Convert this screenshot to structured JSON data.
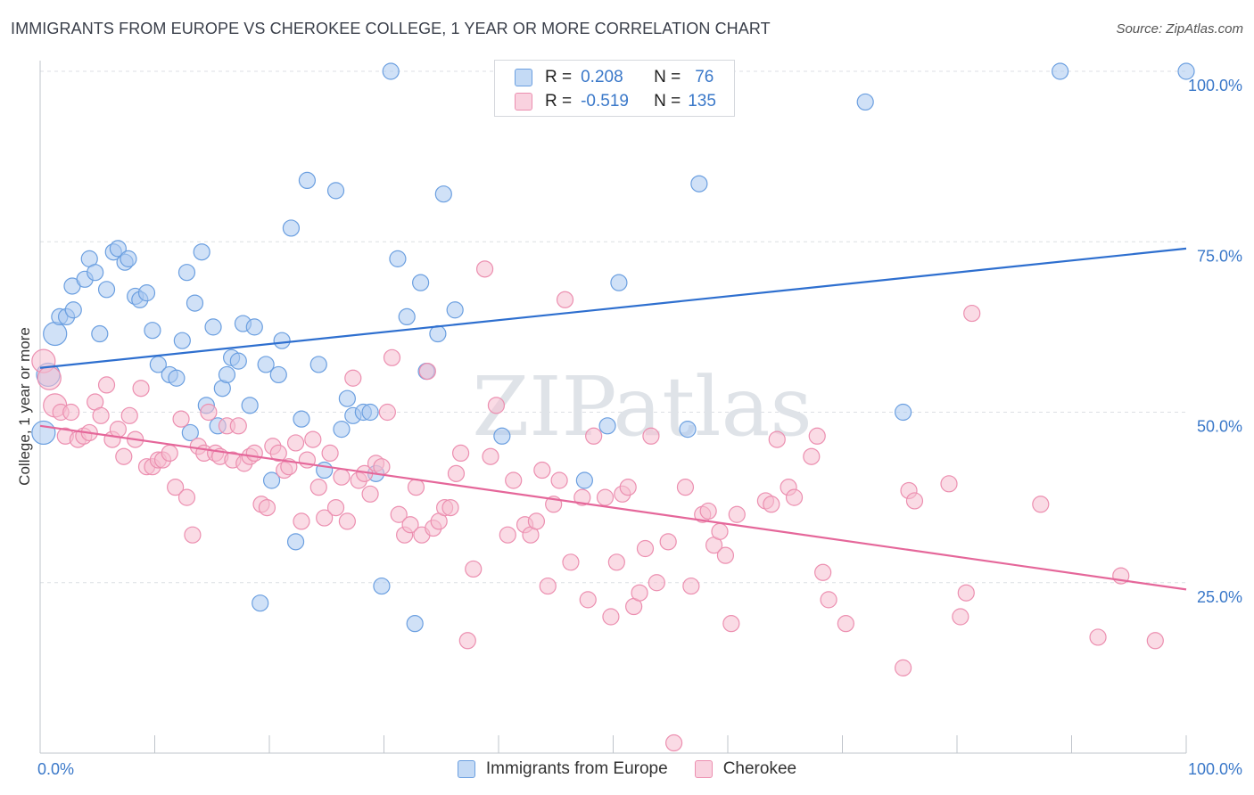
{
  "header": {
    "title": "IMMIGRANTS FROM EUROPE VS CHEROKEE COLLEGE, 1 YEAR OR MORE CORRELATION CHART",
    "source": "Source: ZipAtlas.com"
  },
  "watermark": "ZIPatlas",
  "legend": {
    "rows": [
      {
        "r_label": "R =",
        "r_value": "0.208",
        "n_label": "N =",
        "n_value": "76"
      },
      {
        "r_label": "R =",
        "r_value": "-0.519",
        "n_label": "N =",
        "n_value": "135"
      }
    ],
    "bottom": [
      "Immigrants from Europe",
      "Cherokee"
    ]
  },
  "colors": {
    "blue_fill": "#a9c8f0",
    "blue_stroke": "#6b9fe0",
    "blue_line": "#2e6fcf",
    "pink_fill": "#f6bed0",
    "pink_stroke": "#ec8fb0",
    "pink_line": "#e5679a",
    "axis_text": "#3a78c9"
  },
  "chart_data": {
    "type": "scatter",
    "title": "IMMIGRANTS FROM EUROPE VS CHEROKEE COLLEGE, 1 YEAR OR MORE CORRELATION CHART",
    "xlabel": "",
    "ylabel": "College, 1 year or more",
    "xlim": [
      0,
      100
    ],
    "ylim": [
      0,
      100
    ],
    "x_tick_labels": [
      "0.0%",
      "100.0%"
    ],
    "y_tick_labels": [
      "100.0%",
      "75.0%",
      "50.0%",
      "25.0%"
    ],
    "y_tick_values": [
      100,
      75,
      50,
      25
    ],
    "grid": "horizontal dashed",
    "legend_position": "top-center",
    "series": [
      {
        "name": "Immigrants from Europe",
        "color": "#a9c8f0",
        "R": 0.208,
        "N": 76,
        "trend": {
          "x": [
            0,
            100
          ],
          "y": [
            56.5,
            74.0
          ]
        },
        "points": [
          [
            0.3,
            47
          ],
          [
            0.7,
            55.5
          ],
          [
            1.3,
            61.5
          ],
          [
            1.7,
            64
          ],
          [
            2.3,
            64
          ],
          [
            2.9,
            65
          ],
          [
            2.8,
            68.5
          ],
          [
            3.9,
            69.5
          ],
          [
            4.3,
            72.5
          ],
          [
            4.8,
            70.5
          ],
          [
            5.2,
            61.5
          ],
          [
            5.8,
            68
          ],
          [
            6.4,
            73.5
          ],
          [
            6.8,
            74
          ],
          [
            7.4,
            72
          ],
          [
            7.7,
            72.5
          ],
          [
            8.3,
            67
          ],
          [
            8.7,
            66.5
          ],
          [
            9.3,
            67.5
          ],
          [
            9.8,
            62
          ],
          [
            10.3,
            57
          ],
          [
            11.3,
            55.5
          ],
          [
            11.9,
            55
          ],
          [
            12.4,
            60.5
          ],
          [
            12.8,
            70.5
          ],
          [
            13.1,
            47
          ],
          [
            13.5,
            66
          ],
          [
            14.1,
            73.5
          ],
          [
            14.5,
            51
          ],
          [
            15.1,
            62.5
          ],
          [
            15.5,
            48
          ],
          [
            15.9,
            53.5
          ],
          [
            16.3,
            55.5
          ],
          [
            16.7,
            58
          ],
          [
            17.3,
            57.5
          ],
          [
            17.7,
            63
          ],
          [
            18.3,
            51
          ],
          [
            18.7,
            62.5
          ],
          [
            19.2,
            22
          ],
          [
            19.7,
            57
          ],
          [
            20.2,
            40
          ],
          [
            20.8,
            55.5
          ],
          [
            21.1,
            60.5
          ],
          [
            21.9,
            77
          ],
          [
            22.3,
            31
          ],
          [
            22.8,
            49
          ],
          [
            23.3,
            84
          ],
          [
            24.3,
            57
          ],
          [
            24.8,
            41.5
          ],
          [
            25.8,
            82.5
          ],
          [
            26.3,
            47.5
          ],
          [
            26.8,
            52
          ],
          [
            27.3,
            49.5
          ],
          [
            28.2,
            50
          ],
          [
            28.8,
            50
          ],
          [
            29.3,
            41
          ],
          [
            29.8,
            24.5
          ],
          [
            30.6,
            100
          ],
          [
            31.2,
            72.5
          ],
          [
            32.0,
            64
          ],
          [
            32.7,
            19
          ],
          [
            33.2,
            69
          ],
          [
            33.7,
            56
          ],
          [
            34.7,
            61.5
          ],
          [
            35.2,
            82
          ],
          [
            36.2,
            65
          ],
          [
            40.3,
            46.5
          ],
          [
            47.5,
            40
          ],
          [
            49.5,
            48
          ],
          [
            50.5,
            69
          ],
          [
            56.5,
            47.5
          ],
          [
            57.5,
            83.5
          ],
          [
            72.0,
            95.5
          ],
          [
            75.3,
            50
          ],
          [
            89.0,
            100
          ],
          [
            100,
            100
          ]
        ]
      },
      {
        "name": "Cherokee",
        "color": "#f6bed0",
        "R": -0.519,
        "N": 135,
        "trend": {
          "x": [
            0,
            100
          ],
          "y": [
            48.0,
            24.0
          ]
        },
        "points": [
          [
            0.3,
            57.5
          ],
          [
            0.8,
            55
          ],
          [
            1.3,
            51
          ],
          [
            1.8,
            50
          ],
          [
            2.2,
            46.5
          ],
          [
            2.7,
            50
          ],
          [
            3.3,
            46
          ],
          [
            3.8,
            46.5
          ],
          [
            4.3,
            47
          ],
          [
            4.8,
            51.5
          ],
          [
            5.3,
            49.5
          ],
          [
            5.8,
            54
          ],
          [
            6.3,
            46
          ],
          [
            6.8,
            47.5
          ],
          [
            7.3,
            43.5
          ],
          [
            7.8,
            49.5
          ],
          [
            8.3,
            46
          ],
          [
            8.8,
            53.5
          ],
          [
            9.3,
            42
          ],
          [
            9.8,
            42
          ],
          [
            10.3,
            43
          ],
          [
            10.7,
            43
          ],
          [
            11.3,
            44
          ],
          [
            11.8,
            39
          ],
          [
            12.3,
            49
          ],
          [
            12.8,
            37.5
          ],
          [
            13.3,
            32
          ],
          [
            13.8,
            45
          ],
          [
            14.3,
            44
          ],
          [
            14.7,
            50
          ],
          [
            15.3,
            44
          ],
          [
            15.7,
            43.5
          ],
          [
            16.3,
            48
          ],
          [
            16.8,
            43
          ],
          [
            17.3,
            48
          ],
          [
            17.8,
            42.5
          ],
          [
            18.3,
            43.5
          ],
          [
            18.7,
            44
          ],
          [
            19.3,
            36.5
          ],
          [
            19.8,
            36
          ],
          [
            20.3,
            45
          ],
          [
            20.8,
            44
          ],
          [
            21.3,
            41.5
          ],
          [
            21.7,
            42
          ],
          [
            22.3,
            45.5
          ],
          [
            22.8,
            34
          ],
          [
            23.3,
            43
          ],
          [
            23.8,
            46
          ],
          [
            24.3,
            39
          ],
          [
            24.8,
            34.5
          ],
          [
            25.3,
            44
          ],
          [
            25.8,
            36
          ],
          [
            26.3,
            40.5
          ],
          [
            26.8,
            34
          ],
          [
            27.3,
            55
          ],
          [
            27.8,
            40
          ],
          [
            28.3,
            41
          ],
          [
            28.8,
            38
          ],
          [
            29.3,
            42.5
          ],
          [
            29.8,
            42
          ],
          [
            30.3,
            50
          ],
          [
            30.7,
            58
          ],
          [
            31.3,
            35
          ],
          [
            31.8,
            32
          ],
          [
            32.3,
            33.5
          ],
          [
            32.8,
            39
          ],
          [
            33.3,
            32
          ],
          [
            33.8,
            56
          ],
          [
            34.3,
            33
          ],
          [
            34.8,
            34
          ],
          [
            35.3,
            36
          ],
          [
            35.8,
            36
          ],
          [
            36.3,
            41
          ],
          [
            36.7,
            44
          ],
          [
            37.3,
            16.5
          ],
          [
            37.8,
            27
          ],
          [
            38.8,
            71
          ],
          [
            39.3,
            43.5
          ],
          [
            39.8,
            51
          ],
          [
            40.8,
            32
          ],
          [
            41.3,
            40
          ],
          [
            42.3,
            33.5
          ],
          [
            42.8,
            32
          ],
          [
            43.3,
            34
          ],
          [
            43.8,
            41.5
          ],
          [
            44.3,
            24.5
          ],
          [
            44.8,
            36.5
          ],
          [
            45.3,
            40
          ],
          [
            45.8,
            66.5
          ],
          [
            46.3,
            28
          ],
          [
            47.3,
            37.5
          ],
          [
            47.8,
            22.5
          ],
          [
            48.3,
            46.5
          ],
          [
            49.3,
            37.5
          ],
          [
            49.8,
            20
          ],
          [
            50.3,
            28
          ],
          [
            50.8,
            38
          ],
          [
            51.3,
            39
          ],
          [
            51.8,
            21.5
          ],
          [
            52.3,
            23.5
          ],
          [
            52.8,
            30
          ],
          [
            53.3,
            46.5
          ],
          [
            53.8,
            25
          ],
          [
            54.8,
            31
          ],
          [
            55.3,
            1.5
          ],
          [
            56.3,
            39
          ],
          [
            56.8,
            24.5
          ],
          [
            57.8,
            35
          ],
          [
            58.3,
            35.5
          ],
          [
            58.8,
            30.5
          ],
          [
            59.3,
            32.5
          ],
          [
            59.8,
            29
          ],
          [
            60.3,
            19
          ],
          [
            60.8,
            35
          ],
          [
            63.3,
            37
          ],
          [
            63.8,
            36.5
          ],
          [
            64.3,
            46
          ],
          [
            65.3,
            39
          ],
          [
            65.8,
            37.5
          ],
          [
            67.3,
            43.5
          ],
          [
            67.8,
            46.5
          ],
          [
            68.3,
            26.5
          ],
          [
            68.8,
            22.5
          ],
          [
            70.3,
            19
          ],
          [
            75.3,
            12.5
          ],
          [
            75.8,
            38.5
          ],
          [
            76.3,
            37
          ],
          [
            79.3,
            39.5
          ],
          [
            80.3,
            20
          ],
          [
            80.8,
            23.5
          ],
          [
            81.3,
            64.5
          ],
          [
            87.3,
            36.5
          ],
          [
            92.3,
            17
          ],
          [
            94.3,
            26
          ],
          [
            97.3,
            16.5
          ]
        ]
      }
    ]
  }
}
